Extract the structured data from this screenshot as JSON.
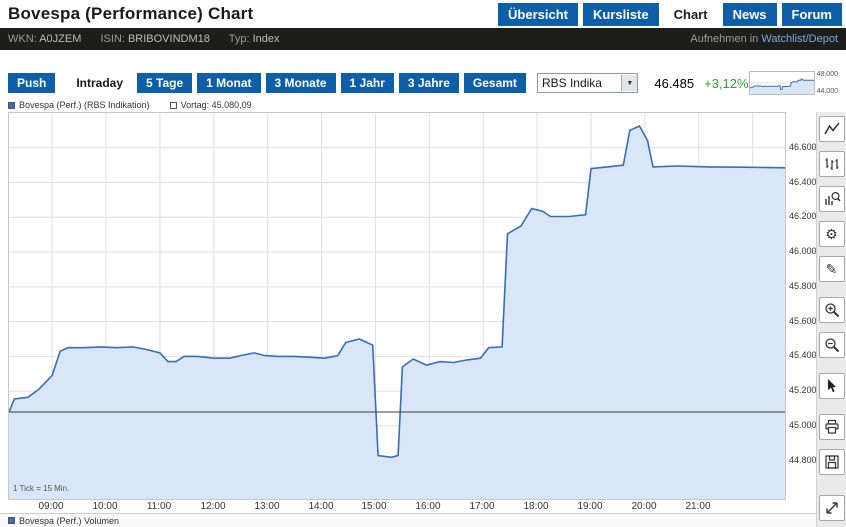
{
  "header": {
    "title": "Bovespa (Performance) Chart",
    "nav": [
      {
        "label": "Übersicht",
        "active": false
      },
      {
        "label": "Kursliste",
        "active": false
      },
      {
        "label": "Chart",
        "active": true
      },
      {
        "label": "News",
        "active": false
      },
      {
        "label": "Forum",
        "active": false
      }
    ]
  },
  "infobar": {
    "wkn_label": "WKN:",
    "wkn_value": "A0JZEM",
    "isin_label": "ISIN:",
    "isin_value": "BRIBOVINDM18",
    "typ_label": "Typ:",
    "typ_value": "Index",
    "watchlist_prefix": "Aufnehmen in",
    "watchlist_link": "Watchlist/Depot"
  },
  "toolbar": {
    "push_label": "Push",
    "ranges": [
      {
        "label": "Intraday",
        "active": true
      },
      {
        "label": "5 Tage",
        "active": false
      },
      {
        "label": "1 Monat",
        "active": false
      },
      {
        "label": "3 Monate",
        "active": false
      },
      {
        "label": "1 Jahr",
        "active": false
      },
      {
        "label": "3 Jahre",
        "active": false
      },
      {
        "label": "Gesamt",
        "active": false
      }
    ],
    "indicator_value": "RBS Indika",
    "price": "46.485",
    "change": "+3,12%",
    "spark_high": "48.000",
    "spark_low": "44.000"
  },
  "legend": {
    "series_label": "Bovespa (Perf.) (RBS Indikation)",
    "prev_label": "Vortag: 45.080,09"
  },
  "volume": {
    "legend_label": "Bovespa (Perf.) Volumen"
  },
  "sidebar": {
    "icons": [
      "line-chart-icon",
      "ohlc-chart-icon",
      "chart-analysis-icon",
      "gear-icon",
      "draw-icon",
      "zoom-in-icon",
      "zoom-out-icon",
      "cursor-icon",
      "print-icon",
      "save-icon",
      "fullscreen-icon"
    ]
  },
  "colors": {
    "accent_blue": "#0e5fa8",
    "chart_line": "#3a6db8",
    "chart_fill": "#d9e6f7",
    "positive_green": "#2f9e33",
    "infobar_bg": "#1d1d1b",
    "grid": "#dedede"
  },
  "chart_data": {
    "type": "area",
    "title": "Bovespa (Performance) intraday (RBS Indikation)",
    "tick_note": "1 Tick = 15 Min.",
    "xlim": [
      8.2,
      22.6
    ],
    "ylim": [
      44580,
      46800
    ],
    "prev_close": 45080.09,
    "last": 46485,
    "change_pct": "+3,12%",
    "grid": true,
    "x_ticks": [
      {
        "hour": 9,
        "label": "09:00"
      },
      {
        "hour": 10,
        "label": "10:00"
      },
      {
        "hour": 11,
        "label": "11:00"
      },
      {
        "hour": 12,
        "label": "12:00"
      },
      {
        "hour": 13,
        "label": "13:00"
      },
      {
        "hour": 14,
        "label": "14:00"
      },
      {
        "hour": 15,
        "label": "15:00"
      },
      {
        "hour": 16,
        "label": "16:00"
      },
      {
        "hour": 17,
        "label": "17:00"
      },
      {
        "hour": 18,
        "label": "18:00"
      },
      {
        "hour": 19,
        "label": "19:00"
      },
      {
        "hour": 20,
        "label": "20:00"
      },
      {
        "hour": 21,
        "label": "21:00"
      },
      {
        "hour": 22,
        "label": ""
      }
    ],
    "y_ticks": [
      {
        "value": 44800,
        "label": "44.800"
      },
      {
        "value": 45000,
        "label": "45.000"
      },
      {
        "value": 45200,
        "label": "45.200"
      },
      {
        "value": 45400,
        "label": "45.400"
      },
      {
        "value": 45600,
        "label": "45.600"
      },
      {
        "value": 45800,
        "label": "45.800"
      },
      {
        "value": 46000,
        "label": "46.000"
      },
      {
        "value": 46200,
        "label": "46.200"
      },
      {
        "value": 46400,
        "label": "46.400"
      },
      {
        "value": 46600,
        "label": "46.600"
      }
    ],
    "series": [
      {
        "name": "Bovespa (Perf.) (RBS Indikation)",
        "points": [
          [
            8.2,
            45080
          ],
          [
            8.3,
            45155
          ],
          [
            8.55,
            45165
          ],
          [
            8.75,
            45210
          ],
          [
            9.0,
            45290
          ],
          [
            9.15,
            45430
          ],
          [
            9.3,
            45450
          ],
          [
            9.6,
            45450
          ],
          [
            9.9,
            45455
          ],
          [
            10.2,
            45450
          ],
          [
            10.5,
            45455
          ],
          [
            10.75,
            45440
          ],
          [
            11.0,
            45420
          ],
          [
            11.15,
            45370
          ],
          [
            11.3,
            45370
          ],
          [
            11.45,
            45400
          ],
          [
            11.7,
            45400
          ],
          [
            12.0,
            45390
          ],
          [
            12.3,
            45390
          ],
          [
            12.5,
            45405
          ],
          [
            12.75,
            45420
          ],
          [
            12.95,
            45405
          ],
          [
            13.2,
            45400
          ],
          [
            13.5,
            45400
          ],
          [
            13.8,
            45395
          ],
          [
            14.05,
            45390
          ],
          [
            14.3,
            45405
          ],
          [
            14.45,
            45480
          ],
          [
            14.7,
            45500
          ],
          [
            14.95,
            45465
          ],
          [
            15.05,
            44830
          ],
          [
            15.3,
            44820
          ],
          [
            15.42,
            44830
          ],
          [
            15.5,
            45340
          ],
          [
            15.7,
            45385
          ],
          [
            15.95,
            45350
          ],
          [
            16.2,
            45370
          ],
          [
            16.45,
            45365
          ],
          [
            16.7,
            45380
          ],
          [
            16.95,
            45390
          ],
          [
            17.1,
            45450
          ],
          [
            17.35,
            45455
          ],
          [
            17.45,
            46105
          ],
          [
            17.7,
            46150
          ],
          [
            17.9,
            46250
          ],
          [
            18.1,
            46235
          ],
          [
            18.25,
            46205
          ],
          [
            18.6,
            46205
          ],
          [
            18.9,
            46215
          ],
          [
            19.0,
            46480
          ],
          [
            19.3,
            46490
          ],
          [
            19.6,
            46500
          ],
          [
            19.72,
            46700
          ],
          [
            19.9,
            46725
          ],
          [
            20.05,
            46640
          ],
          [
            20.15,
            46490
          ],
          [
            20.6,
            46495
          ],
          [
            21.2,
            46490
          ],
          [
            21.8,
            46488
          ],
          [
            22.6,
            46485
          ]
        ]
      }
    ],
    "spark_ylim": [
      44000,
      48000
    ]
  }
}
